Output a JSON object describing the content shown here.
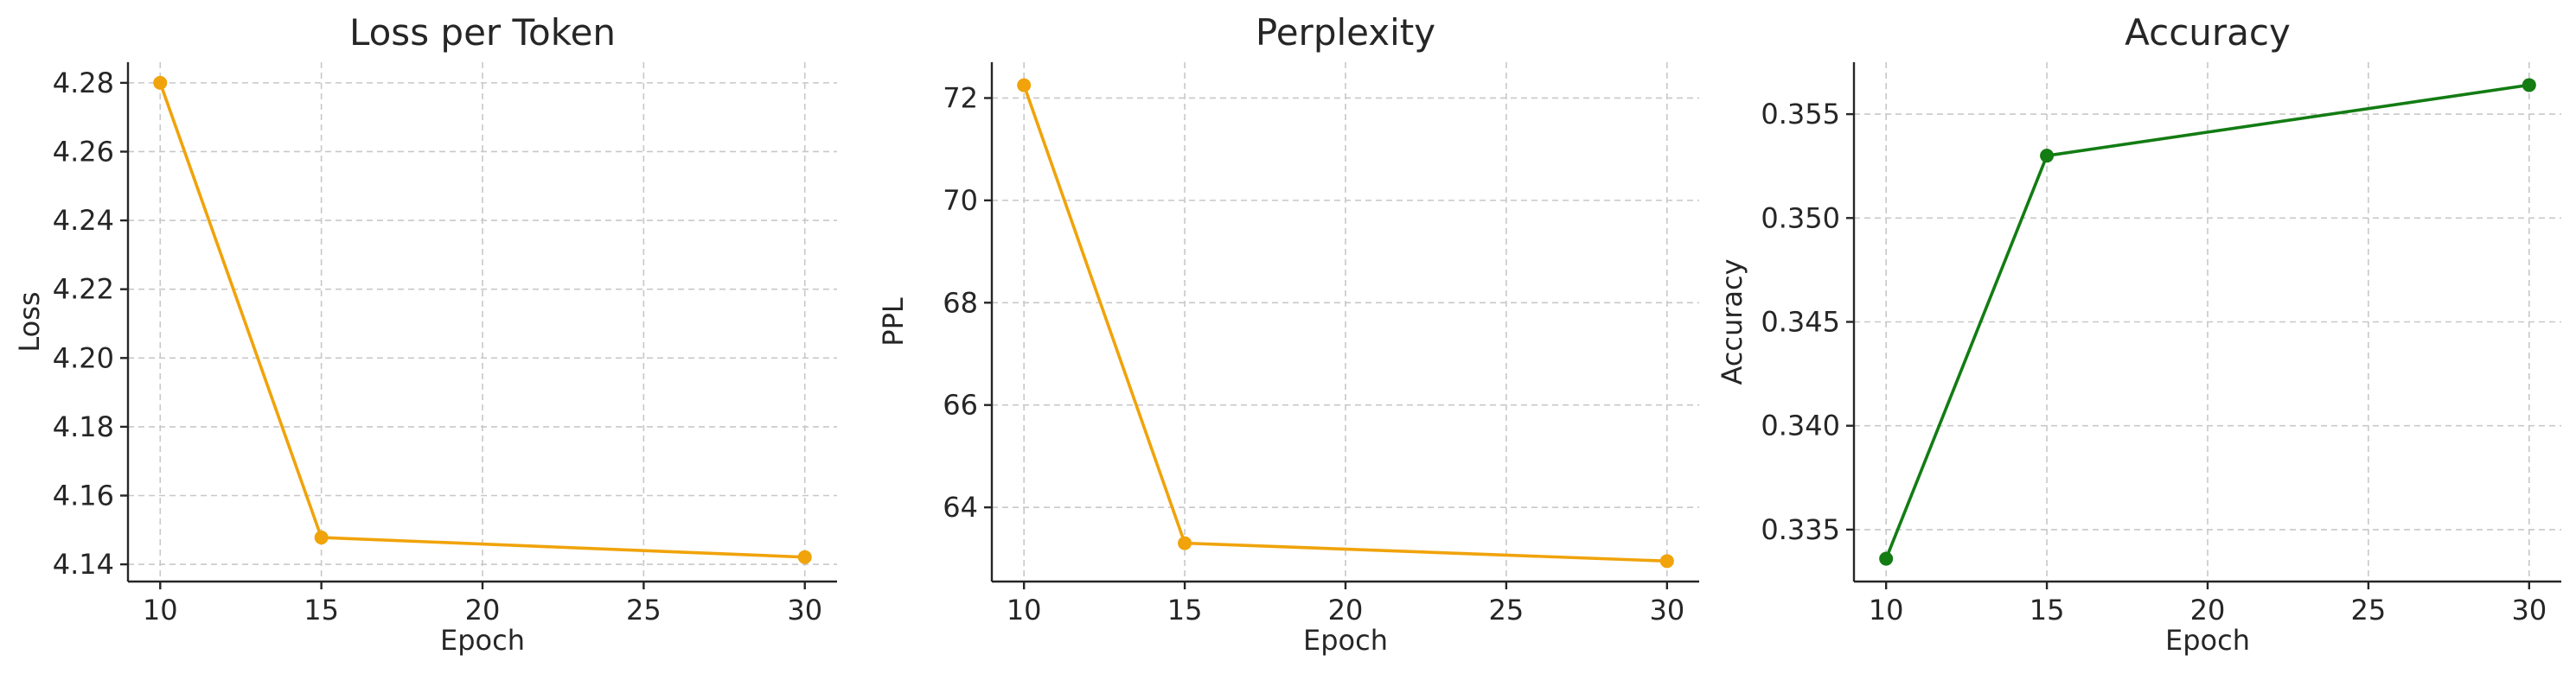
{
  "chart_data": [
    {
      "type": "line",
      "title": "Loss per Token",
      "xlabel": "Epoch",
      "ylabel": "Loss",
      "x": [
        10,
        15,
        30
      ],
      "series": [
        {
          "values": [
            4.28,
            4.1478,
            4.1421
          ],
          "color": "#f0a30a"
        }
      ],
      "xlim": [
        9,
        31
      ],
      "ylim": [
        4.135,
        4.286
      ],
      "xticks": [
        10,
        15,
        20,
        25,
        30
      ],
      "yticks": [
        4.14,
        4.16,
        4.18,
        4.2,
        4.22,
        4.24,
        4.26,
        4.28
      ],
      "xtick_labels": [
        "10",
        "15",
        "20",
        "25",
        "30"
      ],
      "ytick_labels": [
        "4.14",
        "4.16",
        "4.18",
        "4.20",
        "4.22",
        "4.24",
        "4.26",
        "4.28"
      ],
      "grid": true,
      "marker": "circle"
    },
    {
      "type": "line",
      "title": "Perplexity",
      "xlabel": "Epoch",
      "ylabel": "PPL",
      "x": [
        10,
        15,
        30
      ],
      "series": [
        {
          "values": [
            72.25,
            63.3,
            62.95
          ],
          "color": "#f0a30a"
        }
      ],
      "xlim": [
        9,
        31
      ],
      "ylim": [
        62.55,
        72.7
      ],
      "xticks": [
        10,
        15,
        20,
        25,
        30
      ],
      "yticks": [
        64,
        66,
        68,
        70,
        72
      ],
      "xtick_labels": [
        "10",
        "15",
        "20",
        "25",
        "30"
      ],
      "ytick_labels": [
        "64",
        "66",
        "68",
        "70",
        "72"
      ],
      "grid": true,
      "marker": "circle"
    },
    {
      "type": "line",
      "title": "Accuracy",
      "xlabel": "Epoch",
      "ylabel": "Accuracy",
      "x": [
        10,
        15,
        30
      ],
      "series": [
        {
          "values": [
            0.3336,
            0.353,
            0.3564
          ],
          "color": "#137c13"
        }
      ],
      "xlim": [
        9,
        31
      ],
      "ylim": [
        0.3325,
        0.3575
      ],
      "xticks": [
        10,
        15,
        20,
        25,
        30
      ],
      "yticks": [
        0.335,
        0.34,
        0.345,
        0.35,
        0.355
      ],
      "xtick_labels": [
        "10",
        "15",
        "20",
        "25",
        "30"
      ],
      "ytick_labels": [
        "0.335",
        "0.340",
        "0.345",
        "0.350",
        "0.355"
      ],
      "grid": true,
      "marker": "circle"
    }
  ]
}
